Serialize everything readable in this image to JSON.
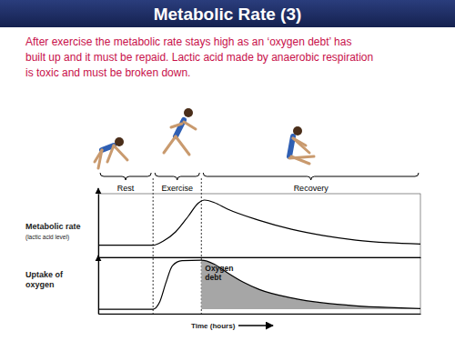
{
  "slide": {
    "title": "Metabolic Rate (3)",
    "text": [
      "After exercise the metabolic rate stays high as an ‘oxygen debt’ has",
      "built up and it must be repaid. Lactic acid made by anaerobic respiration",
      "is toxic and must be broken down."
    ]
  },
  "chart_data": [
    {
      "type": "line",
      "y_label": "Metabolic rate",
      "y_label_note": "(lactic acid level)",
      "phases": [
        {
          "label": "Rest",
          "start": 0,
          "end": 1.7
        },
        {
          "label": "Exercise",
          "start": 1.7,
          "end": 3.2
        },
        {
          "label": "Recovery",
          "start": 3.2,
          "end": 10
        }
      ],
      "x": [
        0,
        1.7,
        2.0,
        2.4,
        2.8,
        3.1,
        3.3,
        3.6,
        4,
        5,
        6,
        7,
        8,
        9,
        10
      ],
      "xlim": [
        0,
        10
      ],
      "ylim": [
        0,
        10
      ],
      "xticks": [],
      "yticks": [],
      "tick_labels": false,
      "series": [
        {
          "color": "#000000",
          "values": [
            1.9,
            1.9,
            2.5,
            4,
            6.5,
            8.5,
            9,
            8.6,
            7.6,
            5.8,
            4.4,
            3.4,
            2.7,
            2.3,
            2.1
          ]
        }
      ]
    },
    {
      "type": "area",
      "y_label": [
        "Uptake of",
        "oxygen"
      ],
      "x_label": "Time (hours)",
      "annotation": [
        "Oxygen",
        "debt"
      ],
      "color": "#a6a6a6",
      "x": [
        0,
        1.7,
        1.9,
        2.1,
        2.3,
        2.6,
        3.2,
        3.6,
        4,
        4.5,
        5,
        6,
        7,
        8,
        9,
        10
      ],
      "xlim": [
        0,
        10
      ],
      "ylim": [
        0,
        10
      ],
      "xticks": [],
      "yticks": [],
      "tick_labels": false,
      "series": [
        {
          "color": "#000000",
          "values": [
            0.8,
            0.8,
            2,
            5.5,
            8.5,
            9.4,
            9.5,
            8.8,
            7.3,
            5.6,
            4.3,
            2.8,
            1.9,
            1.4,
            1.1,
            0.9
          ]
        }
      ]
    }
  ]
}
